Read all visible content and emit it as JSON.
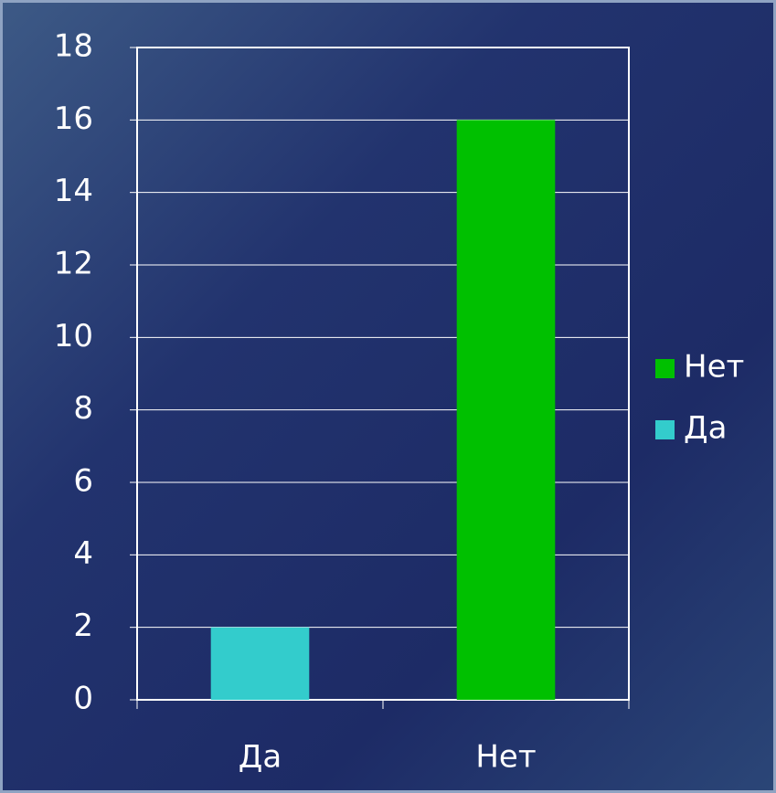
{
  "chart_data": {
    "type": "bar",
    "stacked": true,
    "categories": [
      "Да",
      "Нет"
    ],
    "series": [
      {
        "name": "Да",
        "color": "#33cccc",
        "values": [
          2,
          null
        ]
      },
      {
        "name": "Нет",
        "color": "#00c000",
        "values": [
          null,
          16
        ]
      }
    ],
    "ylim": [
      0,
      18
    ],
    "yticks": [
      0,
      2,
      4,
      6,
      8,
      10,
      12,
      14,
      16,
      18
    ],
    "grid": true,
    "legend": "right"
  }
}
